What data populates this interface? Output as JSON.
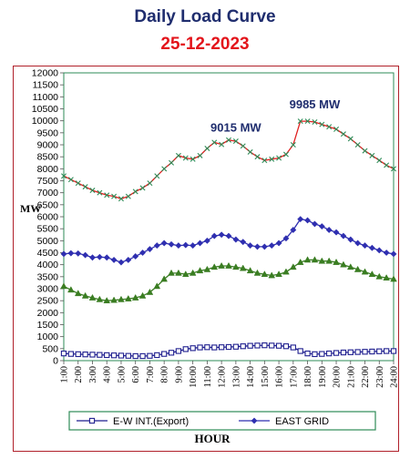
{
  "header": {
    "title": "Daily Load Curve",
    "date": "25-12-2023"
  },
  "chart_data": {
    "type": "line",
    "title": "Daily Load Curve",
    "subtitle": "25-12-2023",
    "xlabel": "HOUR",
    "ylabel": "MW",
    "ylim": [
      0,
      12000
    ],
    "ytick_step": 500,
    "grid": false,
    "legend_position": "bottom",
    "categories": [
      "1:00",
      "2:00",
      "3:00",
      "4:00",
      "5:00",
      "6:00",
      "7:00",
      "8:00",
      "9:00",
      "10:00",
      "11:00",
      "12:00",
      "13:00",
      "14:00",
      "15:00",
      "16:00",
      "17:00",
      "18:00",
      "19:00",
      "20:00",
      "21:00",
      "22:00",
      "23:00",
      "24:00"
    ],
    "x": [
      1,
      1.5,
      2,
      2.5,
      3,
      3.5,
      4,
      4.5,
      5,
      5.5,
      6,
      6.5,
      7,
      7.5,
      8,
      8.5,
      9,
      9.5,
      10,
      10.5,
      11,
      11.5,
      12,
      12.5,
      13,
      13.5,
      14,
      14.5,
      15,
      15.5,
      16,
      16.5,
      17,
      17.5,
      18,
      18.5,
      19,
      19.5,
      20,
      20.5,
      21,
      21.5,
      22,
      22.5,
      23,
      23.5,
      24
    ],
    "series": [
      {
        "name": "E-W INT.(Export)",
        "color": "#1f1f8f",
        "marker": "square",
        "values": [
          300,
          280,
          270,
          260,
          250,
          240,
          230,
          220,
          210,
          200,
          190,
          190,
          200,
          230,
          280,
          330,
          400,
          480,
          520,
          550,
          560,
          550,
          560,
          570,
          580,
          600,
          620,
          630,
          640,
          630,
          620,
          600,
          550,
          400,
          300,
          270,
          280,
          300,
          320,
          340,
          350,
          360,
          370,
          380,
          390,
          400,
          400
        ]
      },
      {
        "name": "EAST GRID",
        "color": "#2f2fb0",
        "marker": "diamond",
        "values": [
          4450,
          4480,
          4470,
          4400,
          4300,
          4320,
          4300,
          4200,
          4100,
          4200,
          4350,
          4500,
          4650,
          4800,
          4900,
          4850,
          4800,
          4820,
          4800,
          4900,
          5000,
          5200,
          5250,
          5200,
          5050,
          4950,
          4800,
          4750,
          4750,
          4800,
          4900,
          5100,
          5450,
          5900,
          5850,
          5700,
          5600,
          5450,
          5350,
          5200,
          5050,
          4900,
          4800,
          4700,
          4600,
          4500,
          4450
        ]
      },
      {
        "name": "",
        "color": "#3a7d22",
        "marker": "triangle",
        "values": [
          3100,
          2950,
          2800,
          2700,
          2620,
          2550,
          2500,
          2520,
          2550,
          2580,
          2620,
          2700,
          2850,
          3100,
          3400,
          3650,
          3650,
          3600,
          3650,
          3750,
          3800,
          3900,
          3950,
          3950,
          3900,
          3850,
          3750,
          3650,
          3600,
          3550,
          3600,
          3700,
          3900,
          4100,
          4200,
          4200,
          4150,
          4150,
          4100,
          4000,
          3900,
          3800,
          3700,
          3600,
          3500,
          3450,
          3400
        ]
      },
      {
        "name": "",
        "color": "#e02020",
        "marker": "cross",
        "marker_color": "#2e8b57",
        "values": [
          7700,
          7550,
          7400,
          7250,
          7100,
          7000,
          6900,
          6850,
          6750,
          6850,
          7050,
          7200,
          7400,
          7700,
          8000,
          8250,
          8550,
          8450,
          8400,
          8550,
          8850,
          9100,
          9015,
          9200,
          9150,
          8950,
          8700,
          8500,
          8350,
          8400,
          8450,
          8600,
          9000,
          9985,
          9985,
          9950,
          9850,
          9750,
          9650,
          9450,
          9250,
          9000,
          8750,
          8550,
          8350,
          8150,
          8000
        ]
      }
    ],
    "annotations": [
      {
        "text": "9015 MW",
        "x": 13,
        "y": 9015
      },
      {
        "text": "9985 MW",
        "x": 18.5,
        "y": 9985
      }
    ],
    "legend": [
      {
        "label": "E-W INT.(Export)",
        "series": 0
      },
      {
        "label": "EAST GRID",
        "series": 1
      }
    ]
  },
  "colors": {
    "frame_border": "#b0202a",
    "plot_border": "#2e8b57",
    "legend_border": "#2e8b57",
    "title_color": "#1f2d6e",
    "date_color": "#e3141b",
    "annotation_color": "#1f2d6e"
  }
}
